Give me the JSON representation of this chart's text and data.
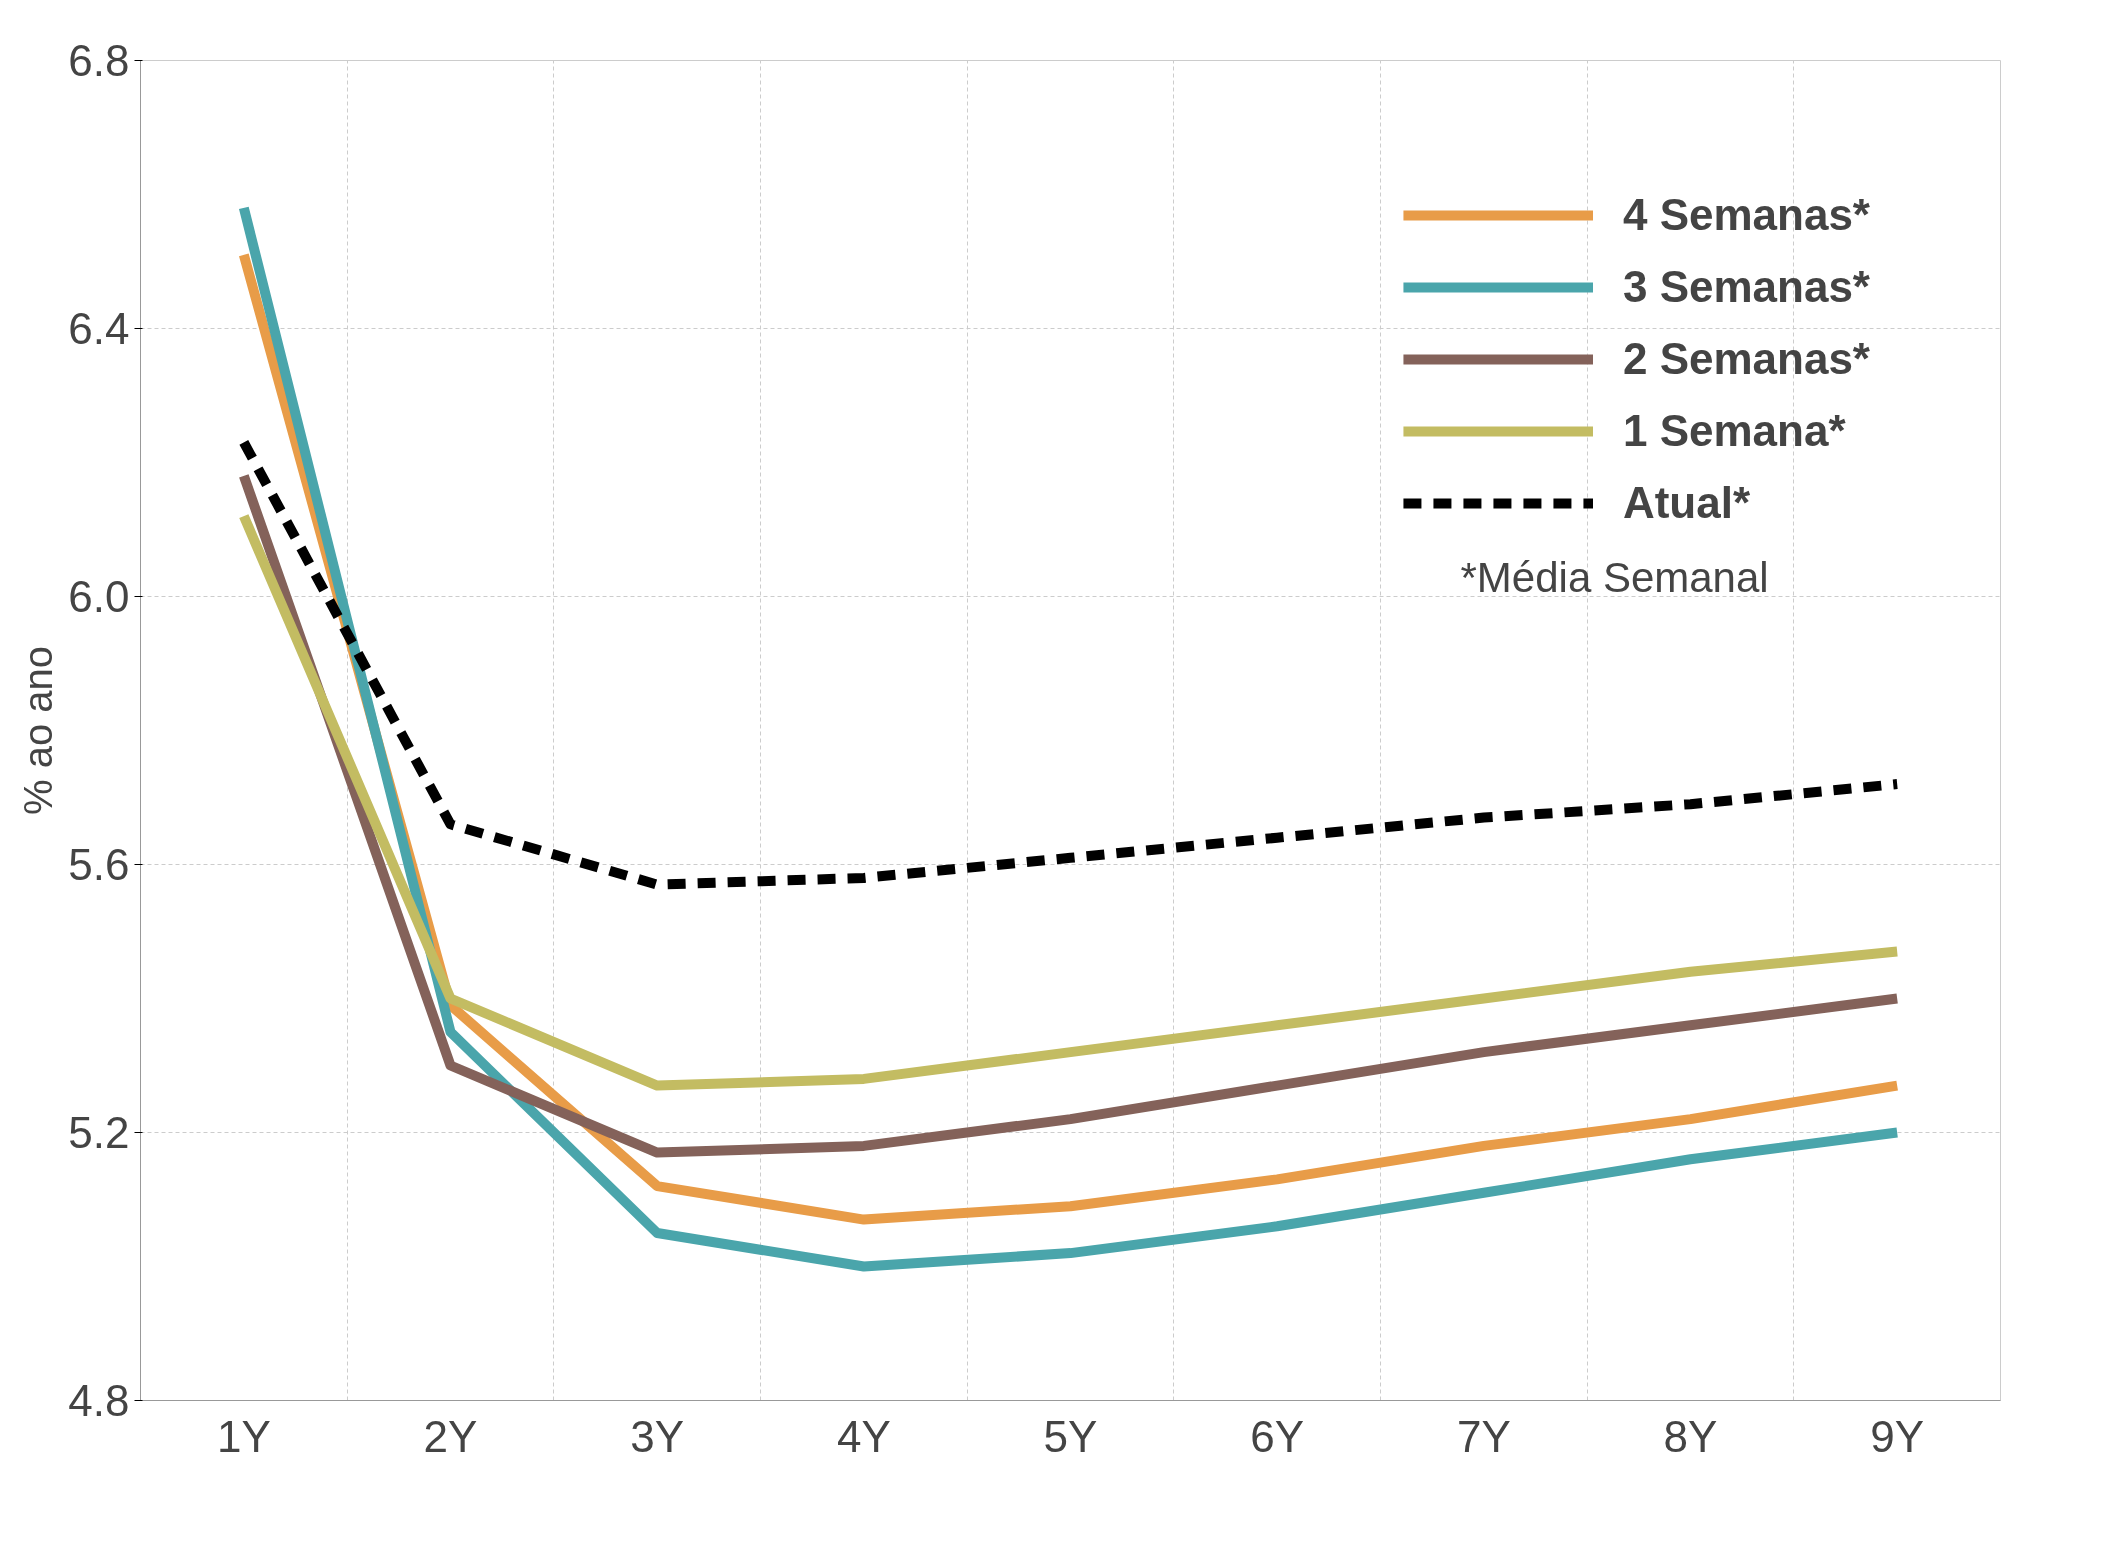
{
  "chart_data": {
    "type": "line",
    "ylabel": "% ao ano",
    "categories": [
      "1Y",
      "2Y",
      "3Y",
      "4Y",
      "5Y",
      "6Y",
      "7Y",
      "8Y",
      "9Y"
    ],
    "series": [
      {
        "name": "4 Semanas*",
        "color": "#e89c48",
        "values": [
          6.51,
          5.39,
          5.12,
          5.07,
          5.09,
          5.13,
          5.18,
          5.22,
          5.27
        ]
      },
      {
        "name": "3 Semanas*",
        "color": "#4aa5ab",
        "values": [
          6.58,
          5.35,
          5.05,
          5.0,
          5.02,
          5.06,
          5.11,
          5.16,
          5.2
        ]
      },
      {
        "name": "2 Semanas*",
        "color": "#84625a",
        "values": [
          6.18,
          5.3,
          5.17,
          5.18,
          5.22,
          5.27,
          5.32,
          5.36,
          5.4
        ]
      },
      {
        "name": "1 Semana*",
        "color": "#c3bc62",
        "values": [
          6.12,
          5.4,
          5.27,
          5.28,
          5.32,
          5.36,
          5.4,
          5.44,
          5.47
        ]
      },
      {
        "name": "Atual*",
        "color": "#000000",
        "line_style": "dashed",
        "values": [
          6.23,
          5.66,
          5.57,
          5.58,
          5.61,
          5.64,
          5.67,
          5.69,
          5.72
        ]
      }
    ],
    "ylim": [
      4.8,
      6.8
    ],
    "yticks": [
      {
        "value": 4.8,
        "label": "4.8"
      },
      {
        "value": 5.2,
        "label": "5.2"
      },
      {
        "value": 5.6,
        "label": "5.6"
      },
      {
        "value": 6.0,
        "label": "6.0"
      },
      {
        "value": 6.4,
        "label": "6.4"
      },
      {
        "value": 6.8,
        "label": "6.8"
      }
    ],
    "annotations": [
      "*Média Semanal"
    ],
    "grid": true,
    "legend": "top right"
  }
}
